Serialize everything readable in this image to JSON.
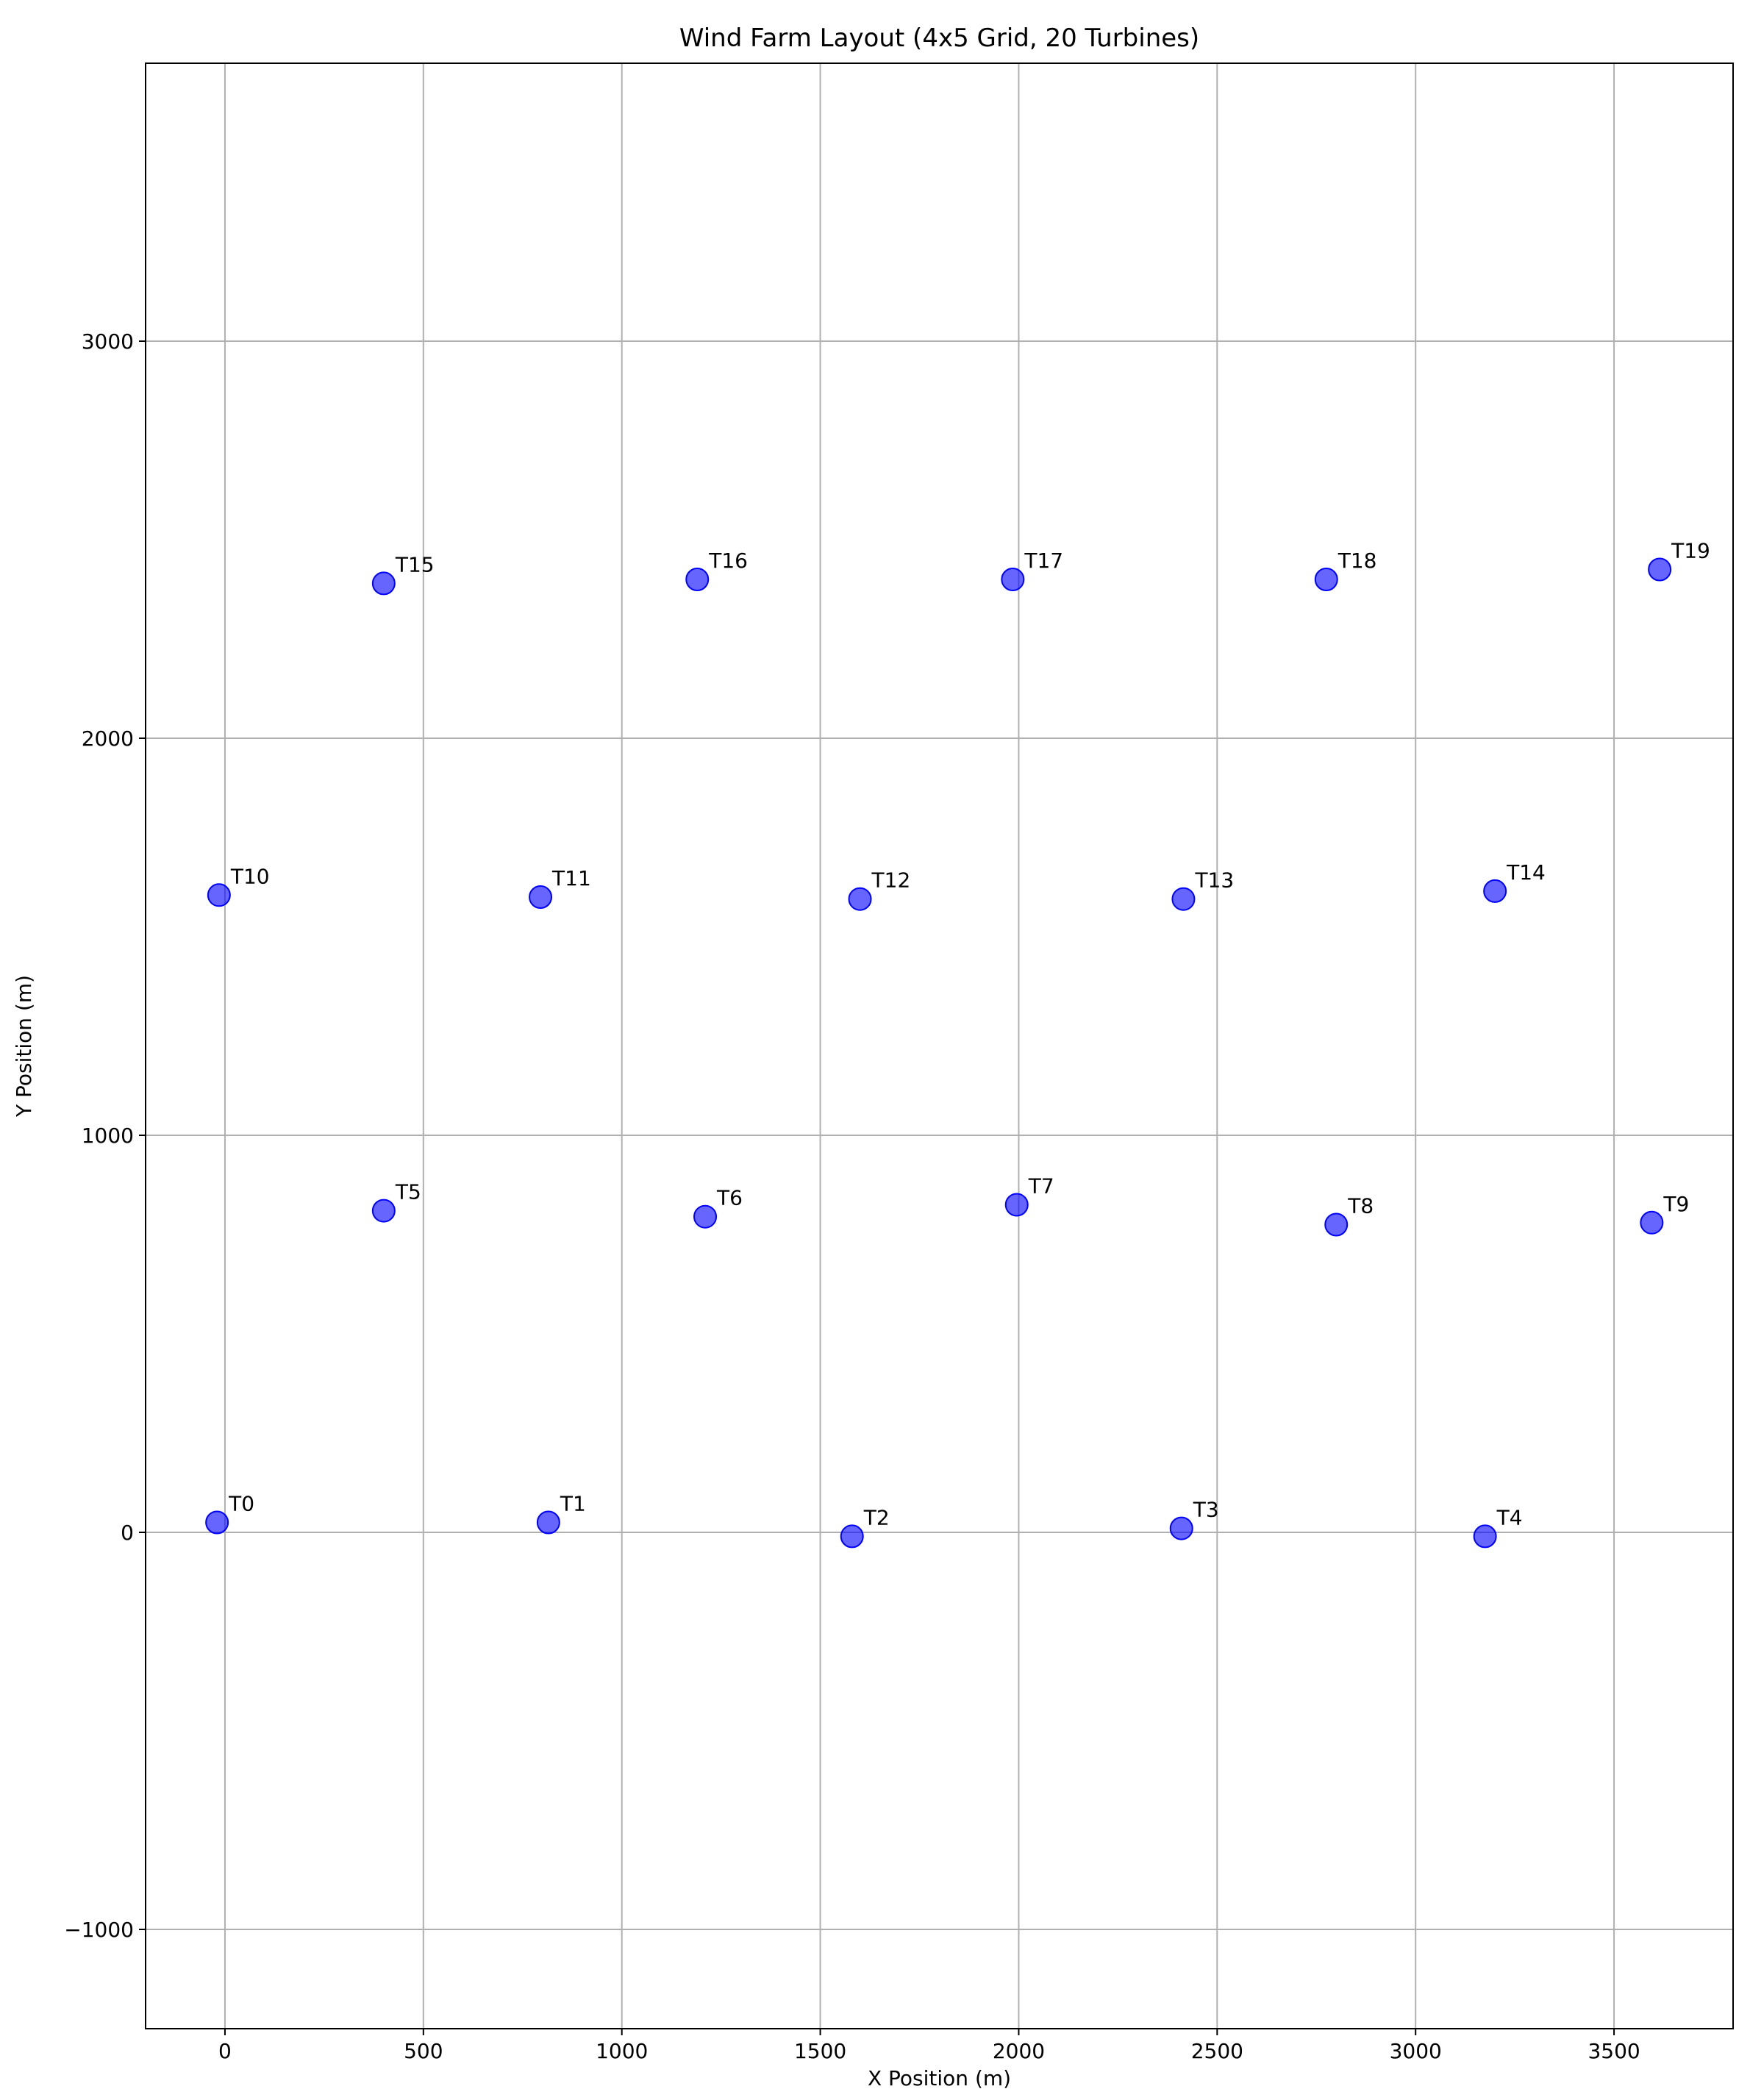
{
  "chart_data": {
    "type": "scatter",
    "title": "Wind Farm Layout (4x5 Grid, 20 Turbines)",
    "xlabel": "X Position (m)",
    "ylabel": "Y Position (m)",
    "xlim": [
      -200,
      3800
    ],
    "ylim": [
      -1250,
      3700
    ],
    "xticks": [
      0,
      500,
      1000,
      1500,
      2000,
      2500,
      3000,
      3500
    ],
    "yticks": [
      -1000,
      0,
      1000,
      2000,
      3000
    ],
    "xtick_labels": [
      "0",
      "500",
      "1000",
      "1500",
      "2000",
      "2500",
      "3000",
      "3500"
    ],
    "ytick_labels": [
      "−1000",
      "0",
      "1000",
      "2000",
      "3000"
    ],
    "grid": true,
    "marker_color": "#0000ff",
    "points": [
      {
        "label": "T0",
        "x": -20,
        "y": 25
      },
      {
        "label": "T1",
        "x": 815,
        "y": 25
      },
      {
        "label": "T2",
        "x": 1580,
        "y": -10
      },
      {
        "label": "T3",
        "x": 2410,
        "y": 10
      },
      {
        "label": "T4",
        "x": 3175,
        "y": -10
      },
      {
        "label": "T5",
        "x": 400,
        "y": 810
      },
      {
        "label": "T6",
        "x": 1210,
        "y": 795
      },
      {
        "label": "T7",
        "x": 1995,
        "y": 825
      },
      {
        "label": "T8",
        "x": 2800,
        "y": 775
      },
      {
        "label": "T9",
        "x": 3595,
        "y": 780
      },
      {
        "label": "T10",
        "x": -15,
        "y": 1605
      },
      {
        "label": "T11",
        "x": 795,
        "y": 1600
      },
      {
        "label": "T12",
        "x": 1600,
        "y": 1595
      },
      {
        "label": "T13",
        "x": 2415,
        "y": 1595
      },
      {
        "label": "T14",
        "x": 3200,
        "y": 1615
      },
      {
        "label": "T15",
        "x": 400,
        "y": 2390
      },
      {
        "label": "T16",
        "x": 1190,
        "y": 2400
      },
      {
        "label": "T17",
        "x": 1985,
        "y": 2400
      },
      {
        "label": "T18",
        "x": 2775,
        "y": 2400
      },
      {
        "label": "T19",
        "x": 3615,
        "y": 2425
      }
    ]
  }
}
